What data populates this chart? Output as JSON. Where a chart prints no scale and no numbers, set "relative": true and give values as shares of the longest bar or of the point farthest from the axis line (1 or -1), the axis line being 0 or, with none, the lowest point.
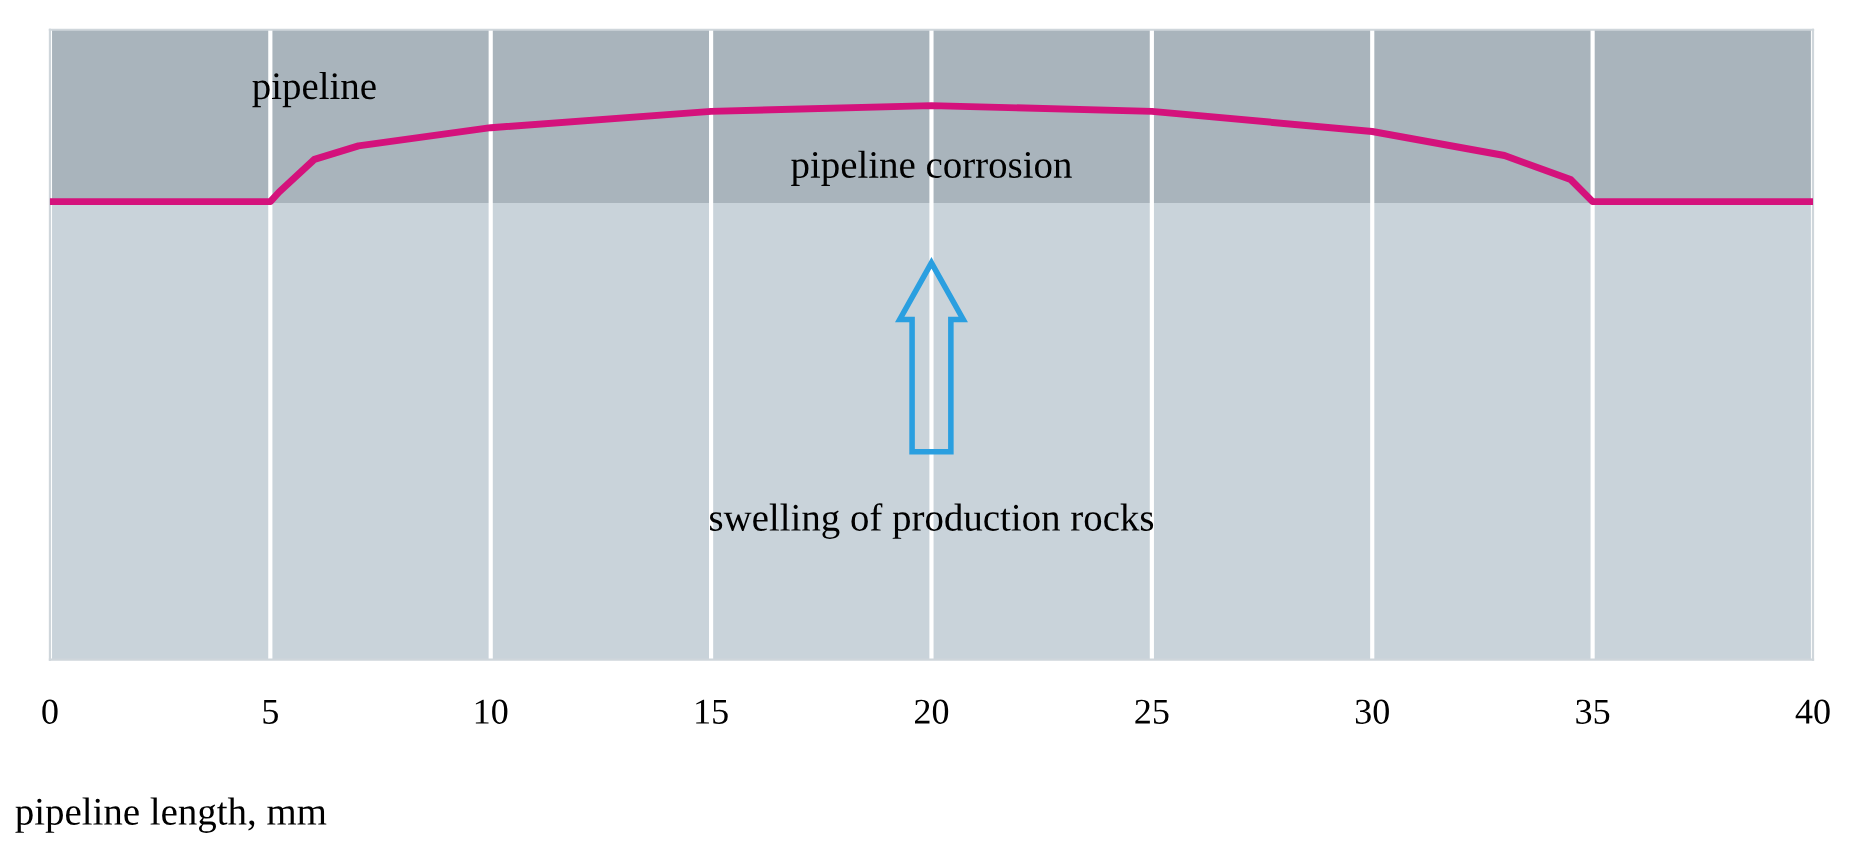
{
  "chart_data": {
    "type": "line",
    "relative": true,
    "x": [
      0,
      5,
      5.2,
      6,
      7,
      10,
      15,
      20,
      25,
      30,
      33,
      34.5,
      35,
      40
    ],
    "series": [
      {
        "color": "#d4127c",
        "values": [
          0,
          0,
          0.1,
          0.44,
          0.58,
          0.77,
          0.94,
          1,
          0.94,
          0.73,
          0.48,
          0.23,
          0,
          0
        ]
      }
    ],
    "xlim": [
      0,
      40
    ],
    "xticks": [
      0,
      5,
      10,
      15,
      20,
      25,
      30,
      35,
      40
    ],
    "grid": "x",
    "tick_labels": "x",
    "xlabel": "pipeline length, mm",
    "annotations": [
      "pipeline",
      "pipeline corrosion",
      "swelling of production rocks"
    ]
  }
}
